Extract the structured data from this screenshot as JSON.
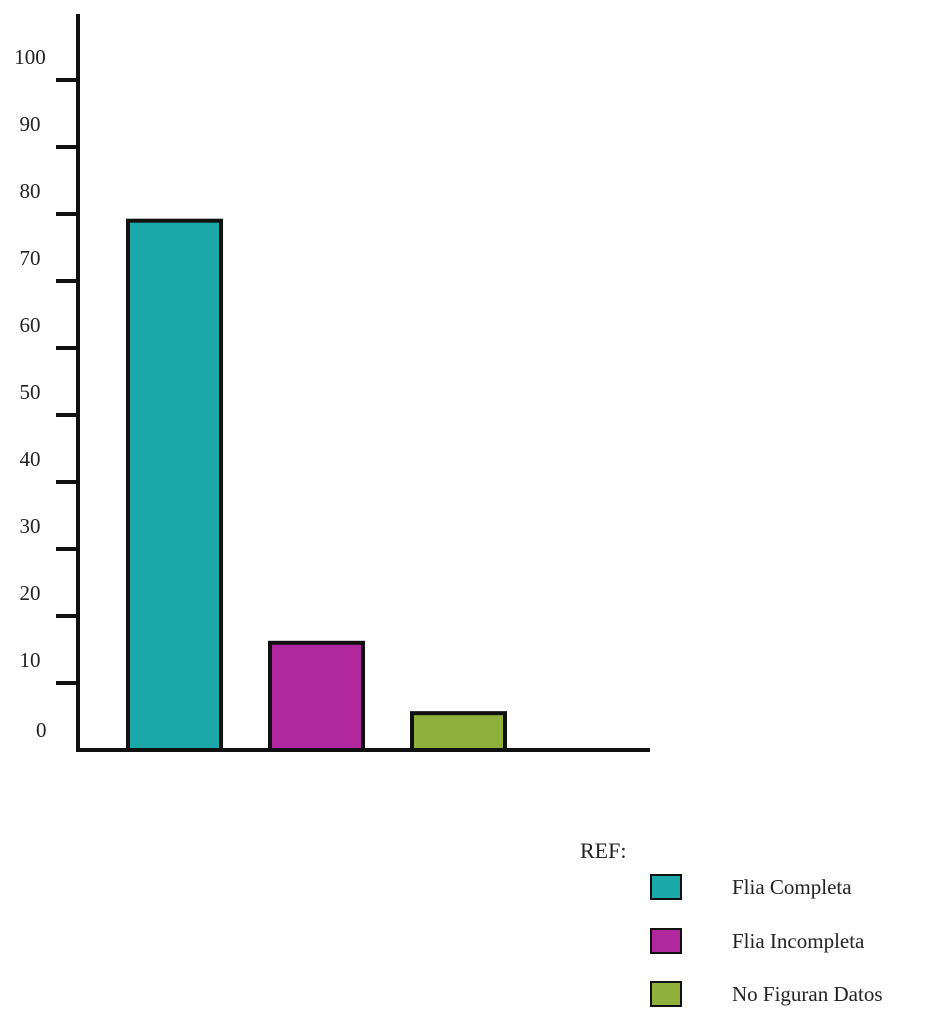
{
  "chart_data": {
    "type": "bar",
    "categories": [
      "Flia Completa",
      "Flia Incompleta",
      "No Figuran Datos"
    ],
    "values": [
      79,
      16,
      5.5
    ],
    "colors": [
      "#1aa8a8",
      "#b0279e",
      "#8fb03a"
    ],
    "ylim": [
      0,
      110
    ],
    "yticks": [
      0,
      10,
      20,
      30,
      40,
      50,
      60,
      70,
      80,
      90,
      100
    ],
    "title": "",
    "xlabel": "",
    "ylabel": "",
    "grid": false,
    "legend_position": "bottom-right"
  },
  "legend": {
    "title": "REF:",
    "items": [
      {
        "label": "Flia Completa",
        "color": "#1aa8a8"
      },
      {
        "label": "Flia Incompleta",
        "color": "#b0279e"
      },
      {
        "label": "No Figuran Datos",
        "color": "#8fb03a"
      }
    ]
  }
}
